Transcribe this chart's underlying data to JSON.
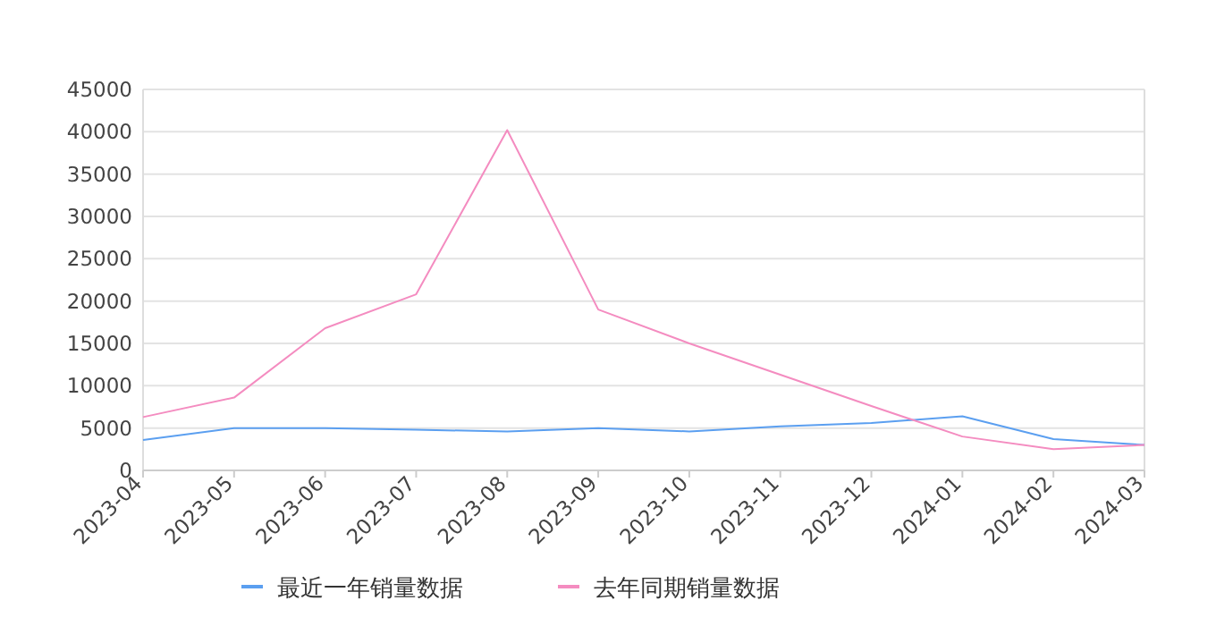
{
  "chart_data": {
    "type": "line",
    "categories": [
      "2023-04",
      "2023-05",
      "2023-06",
      "2023-07",
      "2023-08",
      "2023-09",
      "2023-10",
      "2023-11",
      "2023-12",
      "2024-01",
      "2024-02",
      "2024-03"
    ],
    "series": [
      {
        "name": "最近一年销量数据",
        "color": "#5b9ff0",
        "values": [
          3600,
          5000,
          5000,
          4800,
          4600,
          5000,
          4600,
          5200,
          5600,
          6400,
          3700,
          3000
        ]
      },
      {
        "name": "去年同期销量数据",
        "color": "#f48cc0",
        "values": [
          6300,
          8600,
          16800,
          20800,
          40200,
          19000,
          15000,
          11300,
          7600,
          4000,
          2500,
          3000
        ]
      }
    ],
    "ylim": [
      0,
      45000
    ],
    "yticks": [
      0,
      5000,
      10000,
      15000,
      20000,
      25000,
      30000,
      35000,
      40000,
      45000
    ],
    "grid": "y",
    "legend": "bottom",
    "marker": "none"
  }
}
